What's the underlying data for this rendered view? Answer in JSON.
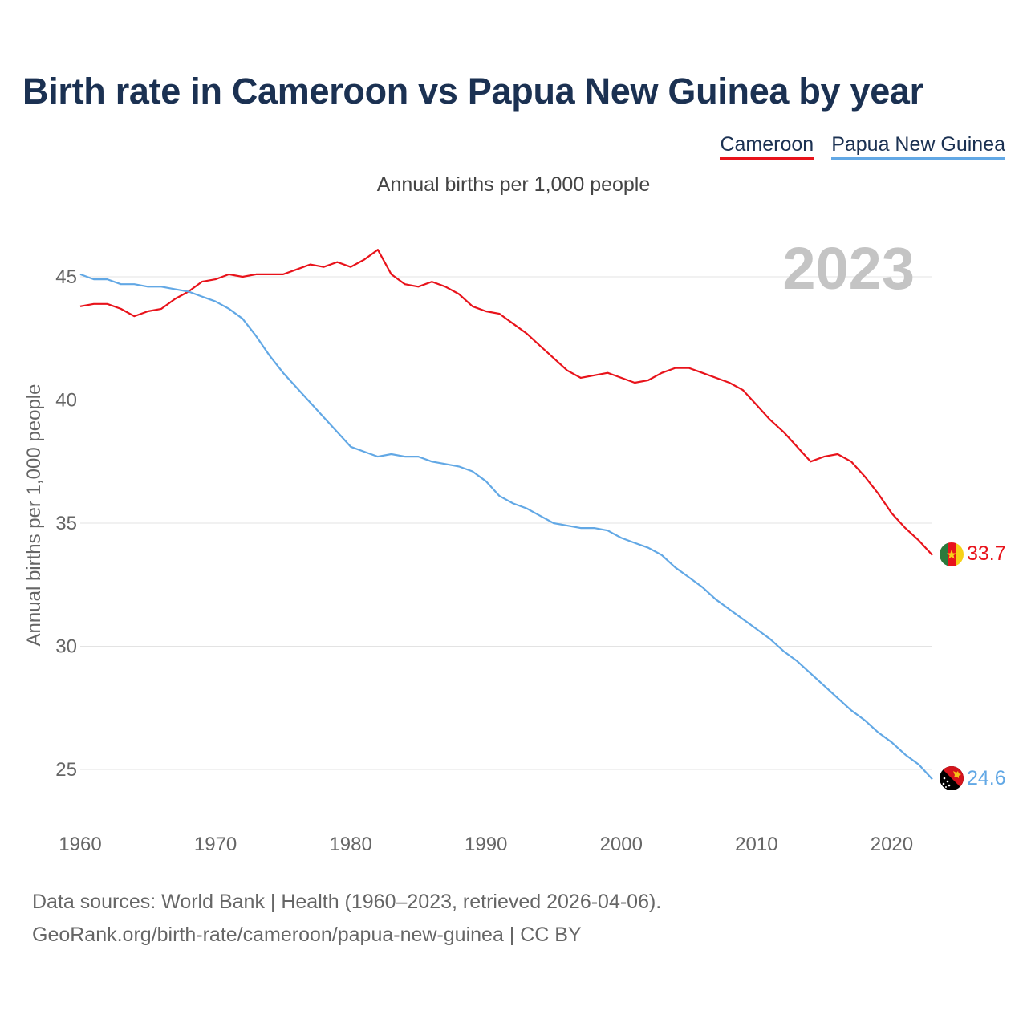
{
  "header": {
    "title": "Birth rate in Cameroon vs Papua New Guinea by year",
    "subtitle": "Annual births per 1,000 people"
  },
  "legend": {
    "items": [
      {
        "label": "Cameroon",
        "color": "#e8131b"
      },
      {
        "label": "Papua New Guinea",
        "color": "#62a8e5"
      }
    ]
  },
  "footer": {
    "source_line": "Data sources: World Bank | Health (1960–2023, retrieved 2026-04-06).",
    "url_line": "GeoRank.org/birth-rate/cameroon/papua-new-guinea | CC BY"
  },
  "chart_data": {
    "type": "line",
    "title": "Birth rate in Cameroon vs Papua New Guinea by year",
    "xlabel": "",
    "ylabel": "Annual births per 1,000 people",
    "year_label": "2023",
    "xlim": [
      1960,
      2023
    ],
    "ylim": [
      23.5,
      47.5
    ],
    "x_ticks": [
      1960,
      1970,
      1980,
      1990,
      2000,
      2010,
      2020
    ],
    "y_ticks": [
      25,
      30,
      35,
      40,
      45
    ],
    "grid": true,
    "x": [
      1960,
      1961,
      1962,
      1963,
      1964,
      1965,
      1966,
      1967,
      1968,
      1969,
      1970,
      1971,
      1972,
      1973,
      1974,
      1975,
      1976,
      1977,
      1978,
      1979,
      1980,
      1981,
      1982,
      1983,
      1984,
      1985,
      1986,
      1987,
      1988,
      1989,
      1990,
      1991,
      1992,
      1993,
      1994,
      1995,
      1996,
      1997,
      1998,
      1999,
      2000,
      2001,
      2002,
      2003,
      2004,
      2005,
      2006,
      2007,
      2008,
      2009,
      2010,
      2011,
      2012,
      2013,
      2014,
      2015,
      2016,
      2017,
      2018,
      2019,
      2020,
      2021,
      2022,
      2023
    ],
    "series": [
      {
        "name": "Cameroon",
        "color": "#e8131b",
        "end_label": "33.7",
        "flag": "cameroon-flag",
        "values": [
          43.8,
          43.9,
          43.9,
          43.7,
          43.4,
          43.6,
          43.7,
          44.1,
          44.4,
          44.8,
          44.9,
          45.1,
          45.0,
          45.1,
          45.1,
          45.1,
          45.3,
          45.5,
          45.4,
          45.6,
          45.4,
          45.7,
          46.1,
          45.1,
          44.7,
          44.6,
          44.8,
          44.6,
          44.3,
          43.8,
          43.6,
          43.5,
          43.1,
          42.7,
          42.2,
          41.7,
          41.2,
          40.9,
          41.0,
          41.1,
          40.9,
          40.7,
          40.8,
          41.1,
          41.3,
          41.3,
          41.1,
          40.9,
          40.7,
          40.4,
          39.8,
          39.2,
          38.7,
          38.1,
          37.5,
          37.7,
          37.8,
          37.5,
          36.9,
          36.2,
          35.4,
          34.8,
          34.3,
          33.7
        ]
      },
      {
        "name": "Papua New Guinea",
        "color": "#62a8e5",
        "end_label": "24.6",
        "flag": "papua-new-guinea-flag",
        "values": [
          45.1,
          44.9,
          44.9,
          44.7,
          44.7,
          44.6,
          44.6,
          44.5,
          44.4,
          44.2,
          44.0,
          43.7,
          43.3,
          42.6,
          41.8,
          41.1,
          40.5,
          39.9,
          39.3,
          38.7,
          38.1,
          37.9,
          37.7,
          37.8,
          37.7,
          37.7,
          37.5,
          37.4,
          37.3,
          37.1,
          36.7,
          36.1,
          35.8,
          35.6,
          35.3,
          35.0,
          34.9,
          34.8,
          34.8,
          34.7,
          34.4,
          34.2,
          34.0,
          33.7,
          33.2,
          32.8,
          32.4,
          31.9,
          31.5,
          31.1,
          30.7,
          30.3,
          29.8,
          29.4,
          28.9,
          28.4,
          27.9,
          27.4,
          27.0,
          26.5,
          26.1,
          25.6,
          25.2,
          24.6
        ]
      }
    ]
  }
}
